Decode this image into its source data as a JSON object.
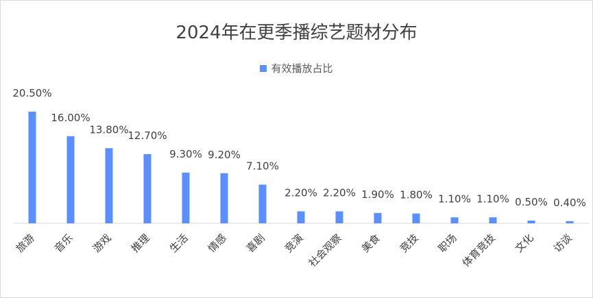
{
  "chart_data": {
    "type": "bar",
    "title": "2024年在更季播综艺题材分布",
    "legend": "有效播放占比",
    "legend_position": "top",
    "grid": false,
    "color": "#5b8ff9",
    "categories": [
      "旅游",
      "音乐",
      "游戏",
      "推理",
      "生活",
      "情感",
      "喜剧",
      "竞演",
      "社会观察",
      "美食",
      "竞技",
      "职场",
      "体育竞技",
      "文化",
      "访谈"
    ],
    "values": [
      20.5,
      16.0,
      13.8,
      12.7,
      9.3,
      9.2,
      7.1,
      2.2,
      2.2,
      1.9,
      1.8,
      1.1,
      1.1,
      0.5,
      0.4
    ],
    "labels": [
      "20.50%",
      "16.00%",
      "13.80%",
      "12.70%",
      "9.30%",
      "9.20%",
      "7.10%",
      "2.20%",
      "2.20%",
      "1.90%",
      "1.80%",
      "1.10%",
      "1.10%",
      "0.50%",
      "0.40%"
    ]
  }
}
